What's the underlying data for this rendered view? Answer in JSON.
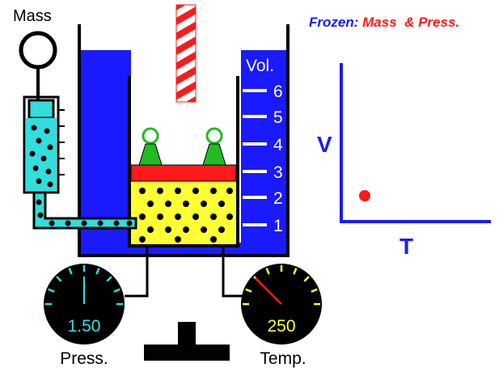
{
  "status": {
    "frozen_label": "Frozen:",
    "frozen_items": "Mass  & Press.",
    "frozen_label_color": "#1a1aff",
    "frozen_items_color": "#ff1a1a"
  },
  "apparatus": {
    "mass_label": "Mass",
    "volume_label": "Vol.",
    "volume_ticks": [
      "6",
      "5",
      "4",
      "3",
      "2",
      "1"
    ],
    "water_color": "#1a1aff",
    "piston_color": "#ff1a1a",
    "gas_color": "#ffff33",
    "weight_color": "#22bb22",
    "hose_color": "#33dddd"
  },
  "gauges": {
    "pressure": {
      "label": "Press.",
      "value": "1.50",
      "value_color": "#33dddd"
    },
    "temperature": {
      "label": "Temp.",
      "value": "250",
      "value_color": "#ffff33"
    }
  },
  "graph": {
    "x_label": "T",
    "y_label": "V",
    "axis_color": "#1a1aff",
    "point_color": "#ff1a1a"
  }
}
